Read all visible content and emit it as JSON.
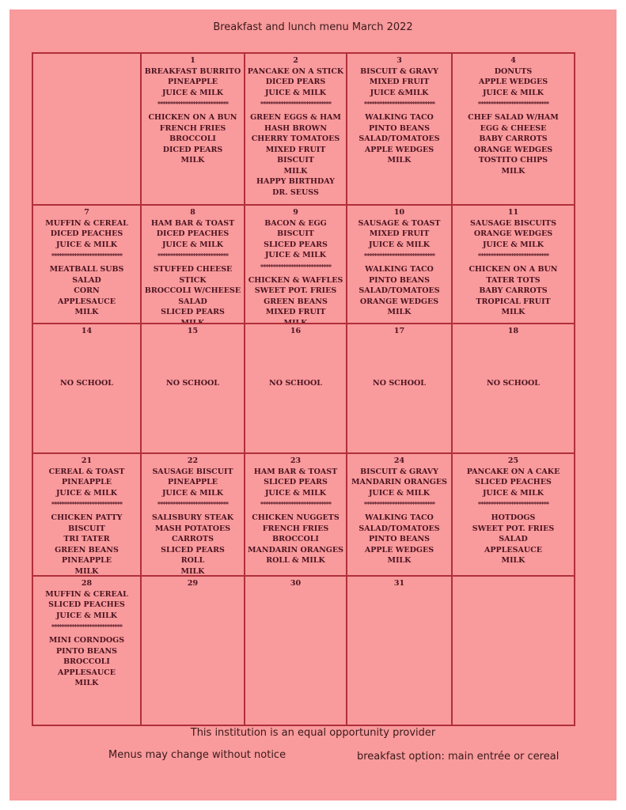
{
  "title": "Breakfast and lunch menu March 2022",
  "divider": "****************************",
  "cells": [
    {
      "day": "",
      "breakfast": [],
      "lunch": []
    },
    {
      "day": "1",
      "breakfast": [
        "BREAKFAST BURRITO",
        "PINEAPPLE",
        "JUICE & MILK"
      ],
      "lunch": [
        "CHICKEN ON A BUN",
        "FRENCH FRIES",
        "BROCCOLI",
        "DICED PEARS",
        "MILK"
      ]
    },
    {
      "day": "2",
      "breakfast": [
        "PANCAKE ON A STICK",
        "DICED PEARS",
        "JUICE & MILK"
      ],
      "lunch": [
        "GREEN EGGS & HAM",
        "HASH BROWN",
        "CHERRY TOMATOES",
        "MIXED FRUIT",
        "BISCUIT",
        "MILK",
        "HAPPY BIRTHDAY",
        "DR. SEUSS"
      ]
    },
    {
      "day": "3",
      "breakfast": [
        "BISCUIT & GRAVY",
        "MIXED FRUIT",
        "JUICE &MILK"
      ],
      "lunch": [
        "WALKING TACO",
        "PINTO BEANS",
        "SALAD/TOMATOES",
        "APPLE WEDGES",
        "MILK"
      ]
    },
    {
      "day": "4",
      "breakfast": [
        "DONUTS",
        "APPLE WEDGES",
        "JUICE & MILK"
      ],
      "lunch": [
        "CHEF SALAD W/HAM",
        "EGG & CHEESE",
        "BABY CARROTS",
        "ORANGE WEDGES",
        "TOSTITO CHIPS",
        "MILK"
      ]
    },
    {
      "day": "7",
      "breakfast": [
        "MUFFIN & CEREAL",
        "DICED PEACHES",
        "JUICE & MILK"
      ],
      "lunch": [
        "MEATBALL SUBS",
        "SALAD",
        "CORN",
        "APPLESAUCE",
        "MILK"
      ]
    },
    {
      "day": "8",
      "breakfast": [
        "HAM BAR & TOAST",
        "DICED PEACHES",
        "JUICE & MILK"
      ],
      "lunch": [
        "STUFFED CHEESE STICK",
        "BROCCOLI W/CHEESE",
        "SALAD",
        "SLICED PEARS",
        "MILK"
      ]
    },
    {
      "day": "9",
      "breakfast": [
        "BACON & EGG BISCUIT",
        "SLICED PEARS",
        "JUICE & MILK"
      ],
      "lunch": [
        "CHICKEN & WAFFLES",
        "SWEET POT. FRIES",
        "GREEN BEANS",
        "MIXED FRUIT",
        "MILK"
      ]
    },
    {
      "day": "10",
      "breakfast": [
        "SAUSAGE & TOAST",
        "MIXED FRUIT",
        "JUICE & MILK"
      ],
      "lunch": [
        "WALKING TACO",
        "PINTO BEANS",
        "SALAD/TOMATOES",
        "ORANGE WEDGES",
        "MILK"
      ]
    },
    {
      "day": "11",
      "breakfast": [
        "SAUSAGE BISCUITS",
        "ORANGE WEDGES",
        "JUICE & MILK"
      ],
      "lunch": [
        "CHICKEN ON A BUN",
        "TATER TOTS",
        "BABY CARROTS",
        "TROPICAL FRUIT",
        "MILK"
      ]
    },
    {
      "day": "14",
      "note": "NO SCHOOL"
    },
    {
      "day": "15",
      "note": "NO SCHOOL"
    },
    {
      "day": "16",
      "note": "NO SCHOOL"
    },
    {
      "day": "17",
      "note": "NO SCHOOL"
    },
    {
      "day": "18",
      "note": "NO SCHOOL"
    },
    {
      "day": "21",
      "breakfast": [
        "CEREAL & TOAST",
        "PINEAPPLE",
        "JUICE & MILK"
      ],
      "lunch": [
        "CHICKEN PATTY",
        "BISCUIT",
        "TRI TATER",
        "GREEN BEANS",
        "PINEAPPLE",
        "MILK"
      ]
    },
    {
      "day": "22",
      "breakfast": [
        "SAUSAGE BISCUIT",
        "PINEAPPLE",
        "JUICE & MILK"
      ],
      "lunch": [
        "SALISBURY STEAK",
        "MASH POTATOES",
        "CARROTS",
        "SLICED PEARS",
        "ROLL",
        "MILK"
      ]
    },
    {
      "day": "23",
      "breakfast": [
        "HAM BAR & TOAST",
        "SLICED PEARS",
        "JUICE & MILK"
      ],
      "lunch": [
        "CHICKEN NUGGETS",
        "FRENCH FRIES",
        "BROCCOLI",
        "MANDARIN ORANGES",
        "ROLL & MILK"
      ]
    },
    {
      "day": "24",
      "breakfast": [
        "BISCUIT & GRAVY",
        "MANDARIN ORANGES",
        "JUICE & MILK"
      ],
      "lunch": [
        "WALKING TACO",
        "SALAD/TOMATOES",
        "PINTO BEANS",
        "APPLE WEDGES",
        "MILK"
      ]
    },
    {
      "day": "25",
      "breakfast": [
        "PANCAKE ON A CAKE",
        "SLICED PEACHES",
        "JUICE & MILK"
      ],
      "lunch": [
        "HOTDOGS",
        "SWEET POT. FRIES",
        "SALAD",
        "APPLESAUCE",
        "MILK"
      ]
    },
    {
      "day": "28",
      "breakfast": [
        "MUFFIN & CEREAL",
        "SLICED PEACHES",
        "JUICE & MILK"
      ],
      "lunch": [
        "MINI CORNDOGS",
        "PINTO BEANS",
        "BROCCOLI",
        "APPLESAUCE",
        "MILK"
      ]
    },
    {
      "day": "29",
      "breakfast": [],
      "lunch": []
    },
    {
      "day": "30",
      "breakfast": [],
      "lunch": []
    },
    {
      "day": "31",
      "breakfast": [],
      "lunch": []
    },
    {
      "day": "",
      "breakfast": [],
      "lunch": []
    }
  ],
  "footer": {
    "equal_opportunity": "This institution is an equal opportunity provider",
    "notice": "Menus may change without notice",
    "breakfast_option": "breakfast option: main entrée or cereal"
  }
}
